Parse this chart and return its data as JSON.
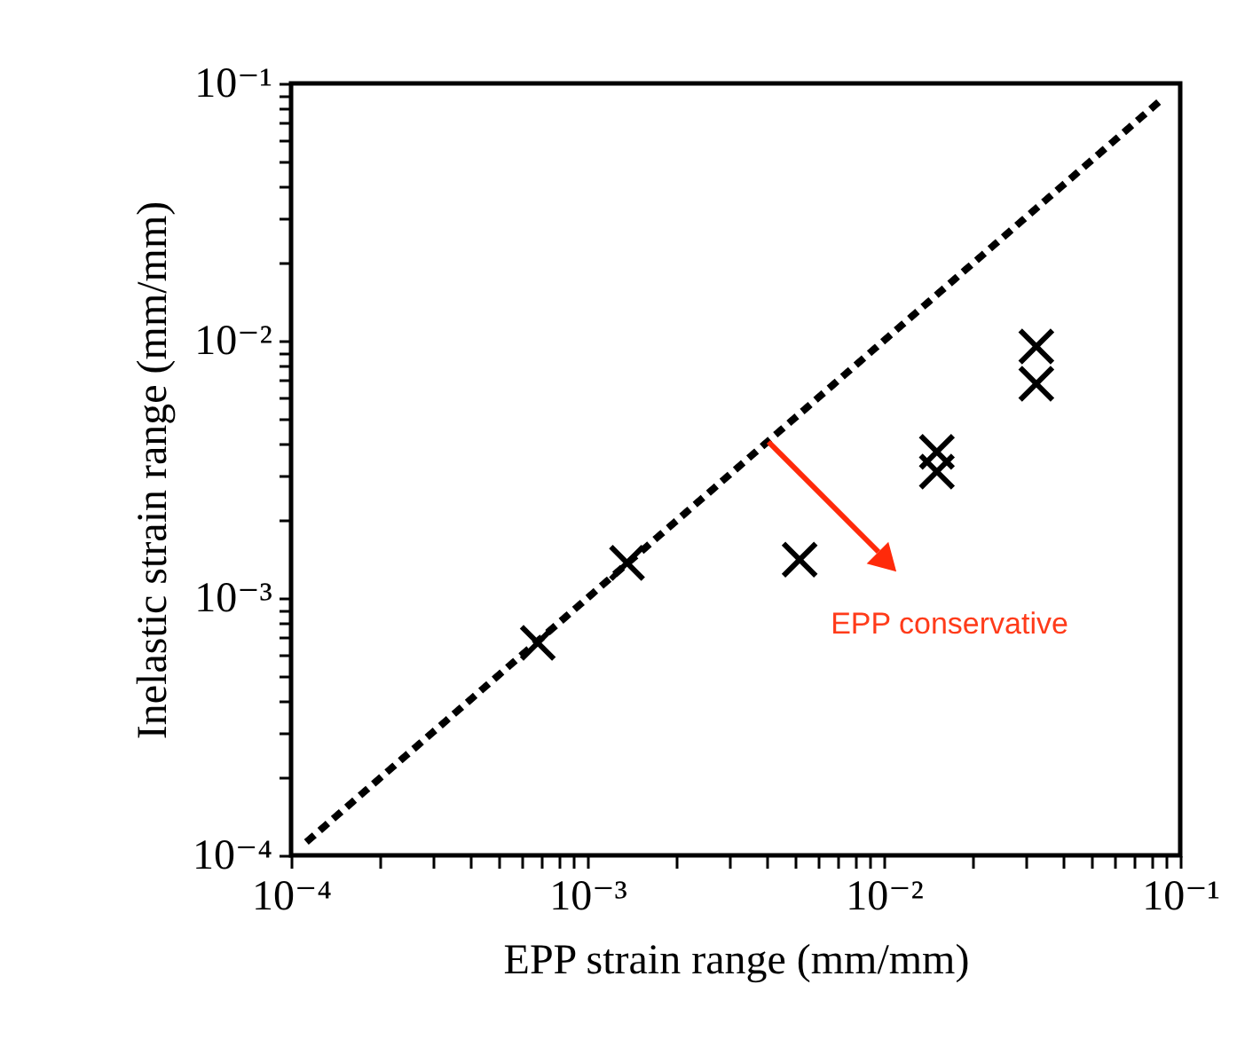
{
  "chart_data": {
    "type": "scatter",
    "xlabel": "EPP strain range (mm/mm)",
    "ylabel": "Inelastic strain range (mm/mm)",
    "log": "xy",
    "grid": false,
    "xlim": [
      0.0001,
      0.1
    ],
    "ylim": [
      0.0001,
      0.1
    ],
    "xticks": [
      {
        "value": 0.0001,
        "label": "10⁻⁴"
      },
      {
        "value": 0.0002,
        "label": null
      },
      {
        "value": 0.0003,
        "label": null
      },
      {
        "value": 0.0004,
        "label": null
      },
      {
        "value": 0.0005,
        "label": null
      },
      {
        "value": 0.0006,
        "label": null
      },
      {
        "value": 0.0007,
        "label": null
      },
      {
        "value": 0.0008,
        "label": null
      },
      {
        "value": 0.0009,
        "label": null
      },
      {
        "value": 0.001,
        "label": "10⁻³"
      },
      {
        "value": 0.002,
        "label": null
      },
      {
        "value": 0.003,
        "label": null
      },
      {
        "value": 0.004,
        "label": null
      },
      {
        "value": 0.005,
        "label": null
      },
      {
        "value": 0.006,
        "label": null
      },
      {
        "value": 0.007,
        "label": null
      },
      {
        "value": 0.008,
        "label": null
      },
      {
        "value": 0.009,
        "label": null
      },
      {
        "value": 0.01,
        "label": "10⁻²"
      },
      {
        "value": 0.02,
        "label": null
      },
      {
        "value": 0.03,
        "label": null
      },
      {
        "value": 0.04,
        "label": null
      },
      {
        "value": 0.05,
        "label": null
      },
      {
        "value": 0.06,
        "label": null
      },
      {
        "value": 0.07,
        "label": null
      },
      {
        "value": 0.08,
        "label": null
      },
      {
        "value": 0.09,
        "label": null
      },
      {
        "value": 0.1,
        "label": "10⁻¹"
      }
    ],
    "yticks": [
      {
        "value": 0.0001,
        "label": "10⁻⁴"
      },
      {
        "value": 0.0002,
        "label": null
      },
      {
        "value": 0.0003,
        "label": null
      },
      {
        "value": 0.0004,
        "label": null
      },
      {
        "value": 0.0005,
        "label": null
      },
      {
        "value": 0.0006,
        "label": null
      },
      {
        "value": 0.0007,
        "label": null
      },
      {
        "value": 0.0008,
        "label": null
      },
      {
        "value": 0.0009,
        "label": null
      },
      {
        "value": 0.001,
        "label": "10⁻³"
      },
      {
        "value": 0.002,
        "label": null
      },
      {
        "value": 0.003,
        "label": null
      },
      {
        "value": 0.004,
        "label": null
      },
      {
        "value": 0.005,
        "label": null
      },
      {
        "value": 0.006,
        "label": null
      },
      {
        "value": 0.007,
        "label": null
      },
      {
        "value": 0.008,
        "label": null
      },
      {
        "value": 0.009,
        "label": null
      },
      {
        "value": 0.01,
        "label": "10⁻²"
      },
      {
        "value": 0.02,
        "label": null
      },
      {
        "value": 0.03,
        "label": null
      },
      {
        "value": 0.04,
        "label": null
      },
      {
        "value": 0.05,
        "label": null
      },
      {
        "value": 0.06,
        "label": null
      },
      {
        "value": 0.07,
        "label": null
      },
      {
        "value": 0.08,
        "label": null
      },
      {
        "value": 0.09,
        "label": null
      },
      {
        "value": 0.1,
        "label": "10⁻¹"
      }
    ],
    "series": [
      {
        "type": "line",
        "color": "#000000",
        "line_style": "dotted",
        "marker": "none",
        "x": [
          0.000115,
          0.087
        ],
        "values": [
          0.000115,
          0.087
        ]
      },
      {
        "type": "scatter",
        "color": "#000000",
        "marker": "cross",
        "x": [
          0.00068,
          0.00136,
          0.0052,
          0.0151,
          0.0151,
          0.0327,
          0.0327
        ],
        "values": [
          0.00067,
          0.00137,
          0.00141,
          0.0037,
          0.0031,
          0.0095,
          0.0068
        ]
      }
    ],
    "annotations": [
      "EPP conservative"
    ]
  }
}
